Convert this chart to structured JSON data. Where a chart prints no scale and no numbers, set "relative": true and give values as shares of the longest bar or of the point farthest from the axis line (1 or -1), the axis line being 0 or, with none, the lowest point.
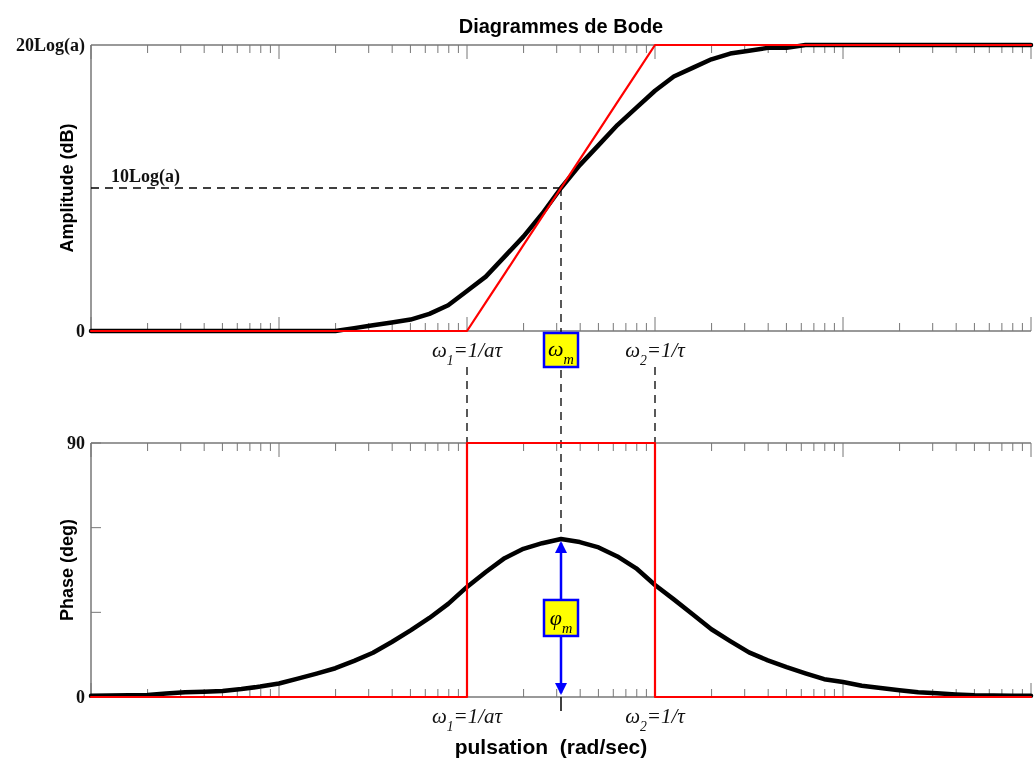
{
  "chart_data": [
    {
      "type": "line",
      "title": "Diagrammes de Bode",
      "ylabel": "Amplitude (dB)",
      "relative": true,
      "categories": [
        null,
        null,
        null,
        null,
        null,
        null,
        null,
        null,
        null,
        null,
        null,
        null,
        null,
        null,
        null,
        null,
        null,
        null,
        null,
        null,
        "ω$_{1}$=1/aτ",
        null,
        null,
        null,
        null,
        "ω$_{m}$",
        null,
        null,
        null,
        null,
        "ω$_{2}$=1/τ",
        null,
        null,
        null,
        null,
        null,
        null,
        null,
        null,
        null,
        null,
        null,
        null,
        null,
        null,
        null,
        null,
        null,
        null,
        null,
        null
      ],
      "series": [
        {
          "color": "#000000",
          "values": [
            0,
            0,
            0,
            0,
            0,
            0,
            0,
            0,
            0,
            0,
            0,
            0,
            0,
            0,
            0.01,
            0.02,
            0.03,
            0.04,
            0.06,
            0.09,
            0.14,
            0.19,
            0.26,
            0.33,
            0.41,
            0.5,
            0.58,
            0.65,
            0.72,
            0.78,
            0.84,
            0.89,
            0.92,
            0.95,
            0.97,
            0.98,
            0.99,
            0.99,
            1,
            1,
            1,
            1,
            1,
            1,
            1,
            1,
            1,
            1,
            1,
            1,
            1
          ]
        },
        {
          "color": "#ff0000",
          "values": [
            0,
            0,
            0,
            0,
            0,
            0,
            0,
            0,
            0,
            0,
            0,
            0,
            0,
            0,
            0,
            0,
            0,
            0,
            0,
            0,
            0,
            0.1,
            0.2,
            0.3,
            0.4,
            0.5,
            0.6,
            0.7,
            0.8,
            0.9,
            1,
            1,
            1,
            1,
            1,
            1,
            1,
            1,
            1,
            1,
            1,
            1,
            1,
            1,
            1,
            1,
            1,
            1,
            1,
            1,
            1
          ]
        }
      ],
      "ref_lines": [
        {
          "axis": "y",
          "value": 0.5,
          "label": "10Log(a)",
          "line_style": "dashed",
          "color": "#000000"
        },
        {
          "axis": "x",
          "value": "ω$_{m}$",
          "line_style": "dashed",
          "color": "#000000"
        }
      ],
      "annotations": [
        "20Log(a)",
        "0"
      ]
    },
    {
      "type": "line",
      "ylabel": "Phase (deg)",
      "xlabel": "pulsation  (rad/sec)",
      "ylim": [
        0,
        90
      ],
      "yticks": [
        {
          "value": 0,
          "label": "0"
        },
        {
          "value": 30,
          "label": null
        },
        {
          "value": 60,
          "label": null
        },
        {
          "value": 90,
          "label": "90"
        }
      ],
      "categories": [
        null,
        null,
        null,
        null,
        null,
        null,
        null,
        null,
        null,
        null,
        null,
        null,
        null,
        null,
        null,
        null,
        null,
        null,
        null,
        null,
        "ω$_{1}$=1/aτ",
        null,
        null,
        null,
        null,
        null,
        null,
        null,
        null,
        null,
        "ω$_{2}$=1/τ",
        null,
        null,
        null,
        null,
        null,
        null,
        null,
        null,
        null,
        null,
        null,
        null,
        null,
        null,
        null,
        null,
        null,
        null,
        null,
        null
      ],
      "series": [
        {
          "color": "#000000",
          "values": [
            0.4,
            0.5,
            0.6,
            0.7,
            1.2,
            1.7,
            1.9,
            2.1,
            2.8,
            3.7,
            4.8,
            6.5,
            8.3,
            10.2,
            12.8,
            15.7,
            19.5,
            23.6,
            28,
            33,
            39,
            44.3,
            49.2,
            52.5,
            54.5,
            56,
            54.9,
            53,
            49.8,
            45.6,
            39.7,
            34.6,
            29.3,
            24,
            19.8,
            15.8,
            13,
            10.6,
            8.4,
            6.3,
            5.3,
            4,
            3.2,
            2.4,
            1.7,
            1.3,
            0.9,
            0.6,
            0.5,
            0.4,
            0.4
          ]
        },
        {
          "type": "step",
          "color": "#ff0000",
          "values": [
            0,
            0,
            0,
            0,
            0,
            0,
            0,
            0,
            0,
            0,
            0,
            0,
            0,
            0,
            0,
            0,
            0,
            0,
            0,
            0,
            90,
            90,
            90,
            90,
            90,
            90,
            90,
            90,
            90,
            90,
            0,
            0,
            0,
            0,
            0,
            0,
            0,
            0,
            0,
            0,
            0,
            0,
            0,
            0,
            0,
            0,
            0,
            0,
            0,
            0,
            0
          ]
        }
      ],
      "annotations": [
        {
          "text": "φ$_{m}$",
          "y": 28
        }
      ]
    }
  ]
}
